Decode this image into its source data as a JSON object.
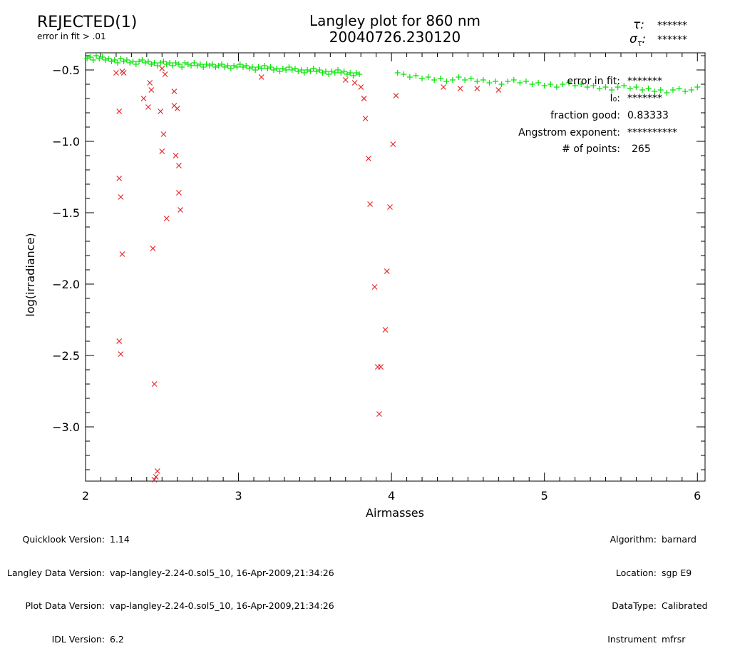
{
  "header": {
    "status": "REJECTED(1)",
    "status_note": "error in fit > .01",
    "title_line1": "Langley plot for 860 nm",
    "title_line2": "20040726.230120",
    "tau_value": "******",
    "sigma_tau_value": "******"
  },
  "stats": [
    {
      "label": "error in fit:",
      "value": "*******"
    },
    {
      "label": "I₀:",
      "value": "*******"
    },
    {
      "label": "fraction good:",
      "value": "0.83333"
    },
    {
      "label": "Angstrom exponent:",
      "value": "**********"
    },
    {
      "label": "# of points:",
      "value": "265"
    }
  ],
  "footer_left": [
    {
      "label": "Quicklook Version:",
      "value": "1.14"
    },
    {
      "label": "Langley Data Version:",
      "value": "vap-langley-2.24-0.sol5_10, 16-Apr-2009,21:34:26"
    },
    {
      "label": "Plot Data Version:",
      "value": "vap-langley-2.24-0.sol5_10, 16-Apr-2009,21:34:26"
    },
    {
      "label": "IDL Version:",
      "value": "6.2"
    }
  ],
  "footer_right": [
    {
      "label": "Algorithm:",
      "value": "barnard"
    },
    {
      "label": "Location:",
      "value": "sgp E9"
    },
    {
      "label": "DataType:",
      "value": "Calibrated"
    },
    {
      "label": "Instrument",
      "value": "mfrsr"
    }
  ],
  "colors": {
    "rejected_text": "#e8262a",
    "good_marker": "#00e400",
    "rejected_marker": "#e8262a",
    "axis": "#000000"
  },
  "chart_data": {
    "type": "scatter",
    "title": "Langley plot for 860 nm",
    "subtitle": "20040726.230120",
    "xlabel": "Airmasses",
    "ylabel": "log(irradiance)",
    "xlim": [
      2.0,
      6.05
    ],
    "ylim": [
      -3.38,
      -0.38
    ],
    "x_ticks": [
      2,
      3,
      4,
      5,
      6
    ],
    "y_ticks": [
      -3.0,
      -2.5,
      -2.0,
      -1.5,
      -1.0,
      -0.5
    ],
    "x_tick_labels": [
      "2",
      "3",
      "4",
      "5",
      "6"
    ],
    "y_tick_labels": [
      "−3.0",
      "−2.5",
      "−2.0",
      "−1.5",
      "−1.0",
      "−0.5"
    ],
    "grid": false,
    "series": [
      {
        "marker": "plus",
        "color": "#00e400",
        "x": [
          2.01,
          2.03,
          2.05,
          2.07,
          2.09,
          2.11,
          2.13,
          2.15,
          2.17,
          2.19,
          2.21,
          2.23,
          2.25,
          2.27,
          2.29,
          2.31,
          2.33,
          2.35,
          2.37,
          2.39,
          2.41,
          2.43,
          2.45,
          2.47,
          2.49,
          2.51,
          2.53,
          2.55,
          2.57,
          2.59,
          2.61,
          2.63,
          2.65,
          2.67,
          2.69,
          2.71,
          2.73,
          2.75,
          2.77,
          2.79,
          2.81,
          2.83,
          2.85,
          2.87,
          2.89,
          2.91,
          2.93,
          2.95,
          2.97,
          2.99,
          3.01,
          3.03,
          3.05,
          3.07,
          3.09,
          3.11,
          3.13,
          3.15,
          3.17,
          3.19,
          3.21,
          3.23,
          3.25,
          3.27,
          3.29,
          3.31,
          3.33,
          3.35,
          3.37,
          3.39,
          3.41,
          3.43,
          3.45,
          3.47,
          3.49,
          3.51,
          3.53,
          3.55,
          3.57,
          3.59,
          3.61,
          3.63,
          3.65,
          3.67,
          3.69,
          3.71,
          3.73,
          3.75,
          3.77,
          3.79,
          4.04,
          4.08,
          4.12,
          4.16,
          4.2,
          4.24,
          4.28,
          4.32,
          4.36,
          4.4,
          4.44,
          4.48,
          4.52,
          4.56,
          4.6,
          4.64,
          4.68,
          4.72,
          4.76,
          4.8,
          4.84,
          4.88,
          4.92,
          4.96,
          5.0,
          5.04,
          5.08,
          5.12,
          5.16,
          5.2,
          5.24,
          5.28,
          5.32,
          5.36,
          5.4,
          5.44,
          5.48,
          5.52,
          5.56,
          5.6,
          5.64,
          5.68,
          5.72,
          5.76,
          5.8,
          5.84,
          5.88,
          5.92,
          5.96,
          6.0
        ],
        "y": [
          -0.42,
          -0.41,
          -0.43,
          -0.4,
          -0.42,
          -0.41,
          -0.43,
          -0.42,
          -0.44,
          -0.43,
          -0.45,
          -0.42,
          -0.44,
          -0.43,
          -0.45,
          -0.44,
          -0.46,
          -0.44,
          -0.43,
          -0.45,
          -0.44,
          -0.46,
          -0.45,
          -0.47,
          -0.45,
          -0.44,
          -0.46,
          -0.45,
          -0.47,
          -0.45,
          -0.46,
          -0.48,
          -0.45,
          -0.46,
          -0.47,
          -0.45,
          -0.47,
          -0.46,
          -0.48,
          -0.46,
          -0.47,
          -0.46,
          -0.48,
          -0.47,
          -0.46,
          -0.48,
          -0.47,
          -0.49,
          -0.47,
          -0.48,
          -0.46,
          -0.48,
          -0.47,
          -0.49,
          -0.48,
          -0.5,
          -0.48,
          -0.49,
          -0.47,
          -0.49,
          -0.48,
          -0.5,
          -0.49,
          -0.51,
          -0.49,
          -0.5,
          -0.48,
          -0.5,
          -0.49,
          -0.51,
          -0.5,
          -0.52,
          -0.5,
          -0.51,
          -0.49,
          -0.51,
          -0.5,
          -0.52,
          -0.51,
          -0.53,
          -0.51,
          -0.52,
          -0.5,
          -0.52,
          -0.51,
          -0.53,
          -0.52,
          -0.54,
          -0.52,
          -0.53,
          -0.52,
          -0.53,
          -0.55,
          -0.54,
          -0.56,
          -0.55,
          -0.57,
          -0.56,
          -0.58,
          -0.57,
          -0.55,
          -0.57,
          -0.56,
          -0.58,
          -0.57,
          -0.59,
          -0.58,
          -0.6,
          -0.58,
          -0.57,
          -0.59,
          -0.58,
          -0.6,
          -0.59,
          -0.61,
          -0.6,
          -0.62,
          -0.6,
          -0.59,
          -0.61,
          -0.6,
          -0.62,
          -0.61,
          -0.63,
          -0.62,
          -0.64,
          -0.62,
          -0.61,
          -0.63,
          -0.62,
          -0.64,
          -0.63,
          -0.65,
          -0.64,
          -0.66,
          -0.64,
          -0.63,
          -0.65,
          -0.64,
          -0.62
        ]
      },
      {
        "marker": "x",
        "color": "#e8262a",
        "x": [
          2.2,
          2.22,
          2.25,
          2.22,
          2.23,
          2.24,
          2.22,
          2.23,
          2.24,
          2.38,
          2.41,
          2.43,
          2.42,
          2.44,
          2.45,
          2.47,
          2.46,
          2.45,
          2.49,
          2.5,
          2.52,
          2.51,
          2.5,
          2.53,
          2.58,
          2.59,
          2.61,
          2.58,
          2.6,
          2.61,
          2.62,
          3.15,
          3.7,
          3.76,
          3.8,
          3.82,
          3.83,
          3.85,
          3.86,
          3.89,
          3.91,
          3.93,
          3.92,
          3.96,
          3.97,
          3.99,
          4.01,
          4.03,
          4.34,
          4.45,
          4.56,
          4.7
        ],
        "y": [
          -0.52,
          -0.79,
          -0.52,
          -1.26,
          -1.39,
          -1.79,
          -2.4,
          -2.49,
          -0.51,
          -0.7,
          -0.76,
          -0.64,
          -0.59,
          -1.75,
          -2.7,
          -3.31,
          -3.35,
          -3.37,
          -0.79,
          -0.49,
          -0.53,
          -0.95,
          -1.07,
          -1.54,
          -0.65,
          -1.1,
          -1.17,
          -0.75,
          -0.77,
          -1.36,
          -1.48,
          -0.55,
          -0.57,
          -0.59,
          -0.62,
          -0.7,
          -0.84,
          -1.12,
          -1.44,
          -2.02,
          -2.58,
          -2.58,
          -2.91,
          -2.32,
          -1.91,
          -1.46,
          -1.02,
          -0.68,
          -0.62,
          -0.63,
          -0.63,
          -0.64
        ]
      }
    ]
  }
}
